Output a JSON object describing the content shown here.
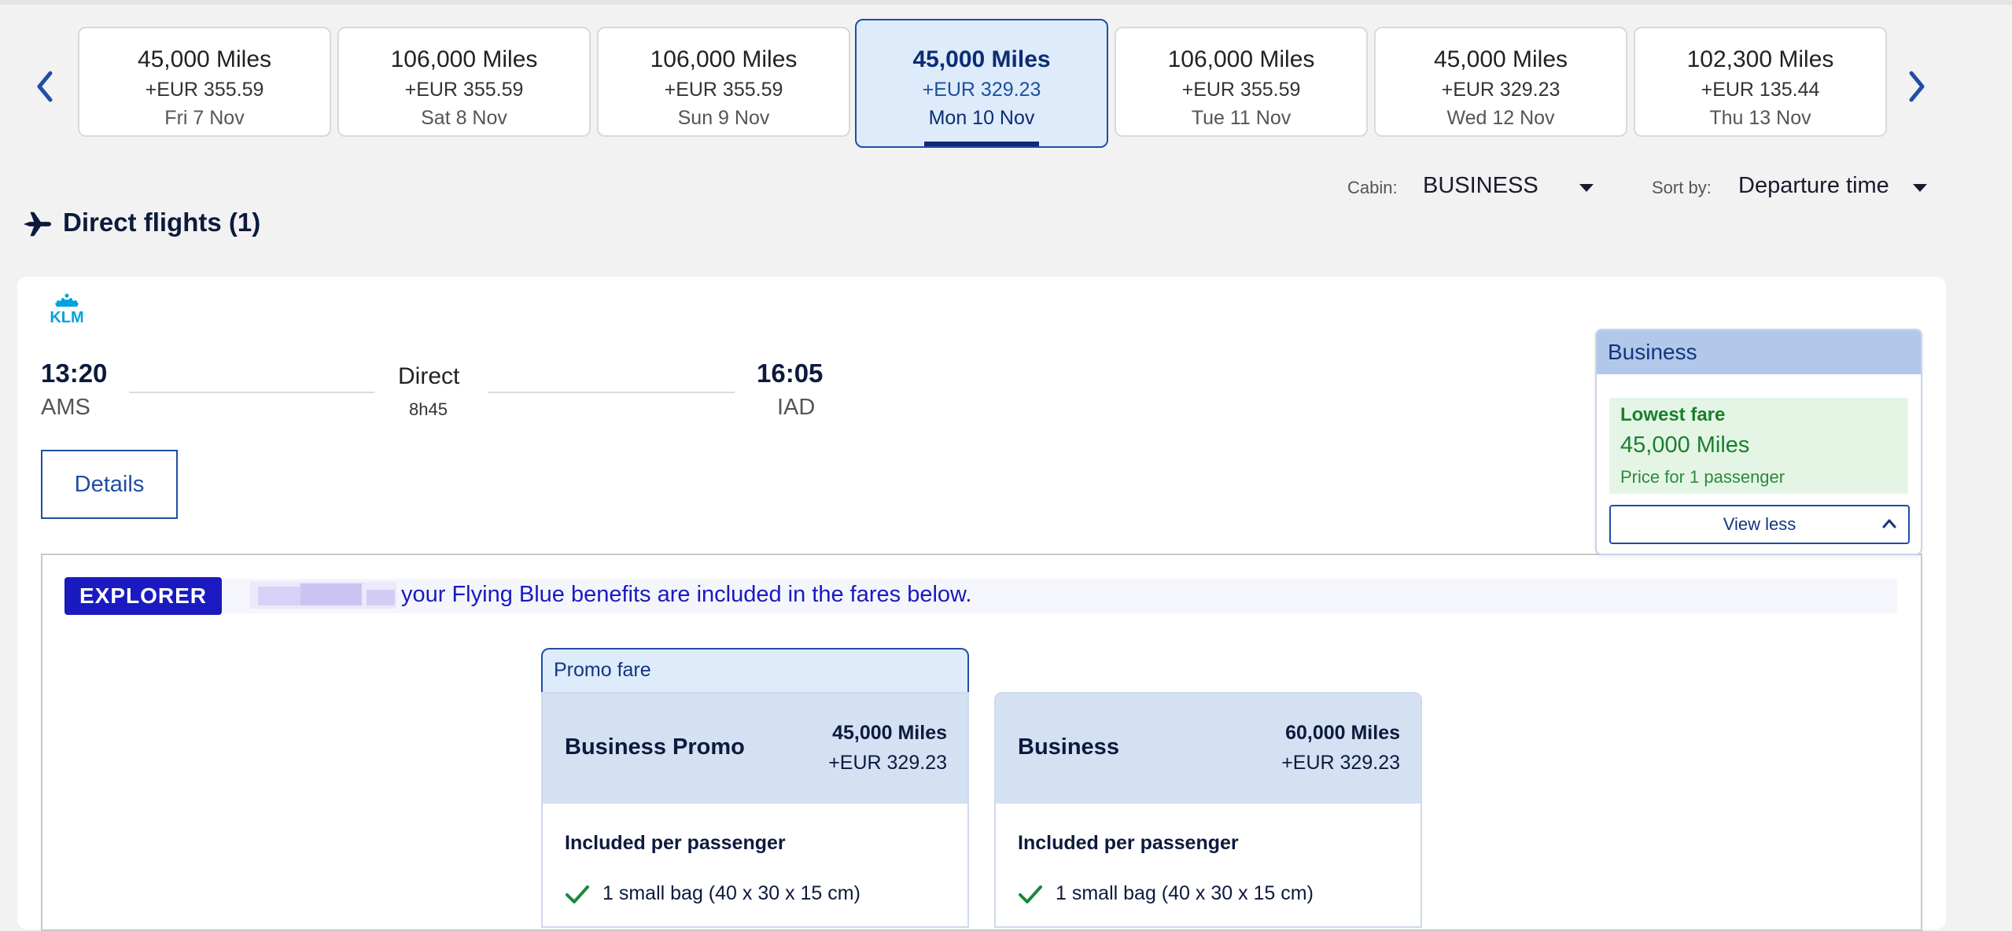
{
  "colors": {
    "brand_blue": "#0c2d73",
    "link_blue": "#1f4ea3",
    "selected_bg": "#deebfb",
    "green": "#1a7f2c",
    "explorer": "#1a1ac0",
    "klm": "#00a1de"
  },
  "carousel": {
    "prev_icon": "chevron-left-icon",
    "next_icon": "chevron-right-icon",
    "dates": [
      {
        "miles": "45,000 Miles",
        "eur": "+EUR 355.59",
        "day": "Fri 7 Nov"
      },
      {
        "miles": "106,000 Miles",
        "eur": "+EUR 355.59",
        "day": "Sat 8 Nov"
      },
      {
        "miles": "106,000 Miles",
        "eur": "+EUR 355.59",
        "day": "Sun 9 Nov"
      },
      {
        "miles": "45,000 Miles",
        "eur": "+EUR 329.23",
        "day": "Mon 10 Nov",
        "selected": true
      },
      {
        "miles": "106,000 Miles",
        "eur": "+EUR 355.59",
        "day": "Tue 11 Nov"
      },
      {
        "miles": "45,000 Miles",
        "eur": "+EUR 329.23",
        "day": "Wed 12 Nov"
      },
      {
        "miles": "102,300 Miles",
        "eur": "+EUR 135.44",
        "day": "Thu 13 Nov"
      }
    ]
  },
  "filters": {
    "cabin_label": "Cabin:",
    "cabin_value": "BUSINESS",
    "sort_label": "Sort by:",
    "sort_value": "Departure time"
  },
  "section": {
    "title": "Direct flights (1)",
    "icon": "airplane-icon"
  },
  "flight": {
    "airline_logo": "KLM",
    "departure_time": "13:20",
    "departure_airport": "AMS",
    "route_type": "Direct",
    "duration": "8h45",
    "arrival_time": "16:05",
    "arrival_airport": "IAD",
    "details_label": "Details"
  },
  "fare_panel": {
    "title": "Business",
    "lowest_label": "Lowest fare",
    "lowest_miles": "45,000 Miles",
    "lowest_note": "Price for 1 passenger",
    "view_less_label": "View less"
  },
  "benefits": {
    "badge": "EXPLORER",
    "text": "your Flying Blue benefits are included in the fares below."
  },
  "fares": {
    "promo_tab": "Promo fare",
    "cards": [
      {
        "name": "Business Promo",
        "miles": "45,000 Miles",
        "eur": "+EUR 329.23",
        "included_title": "Included per passenger",
        "item": "1 small bag (40 x 30 x 15 cm)"
      },
      {
        "name": "Business",
        "miles": "60,000 Miles",
        "eur": "+EUR 329.23",
        "included_title": "Included per passenger",
        "item": "1 small bag (40 x 30 x 15 cm)"
      }
    ]
  }
}
